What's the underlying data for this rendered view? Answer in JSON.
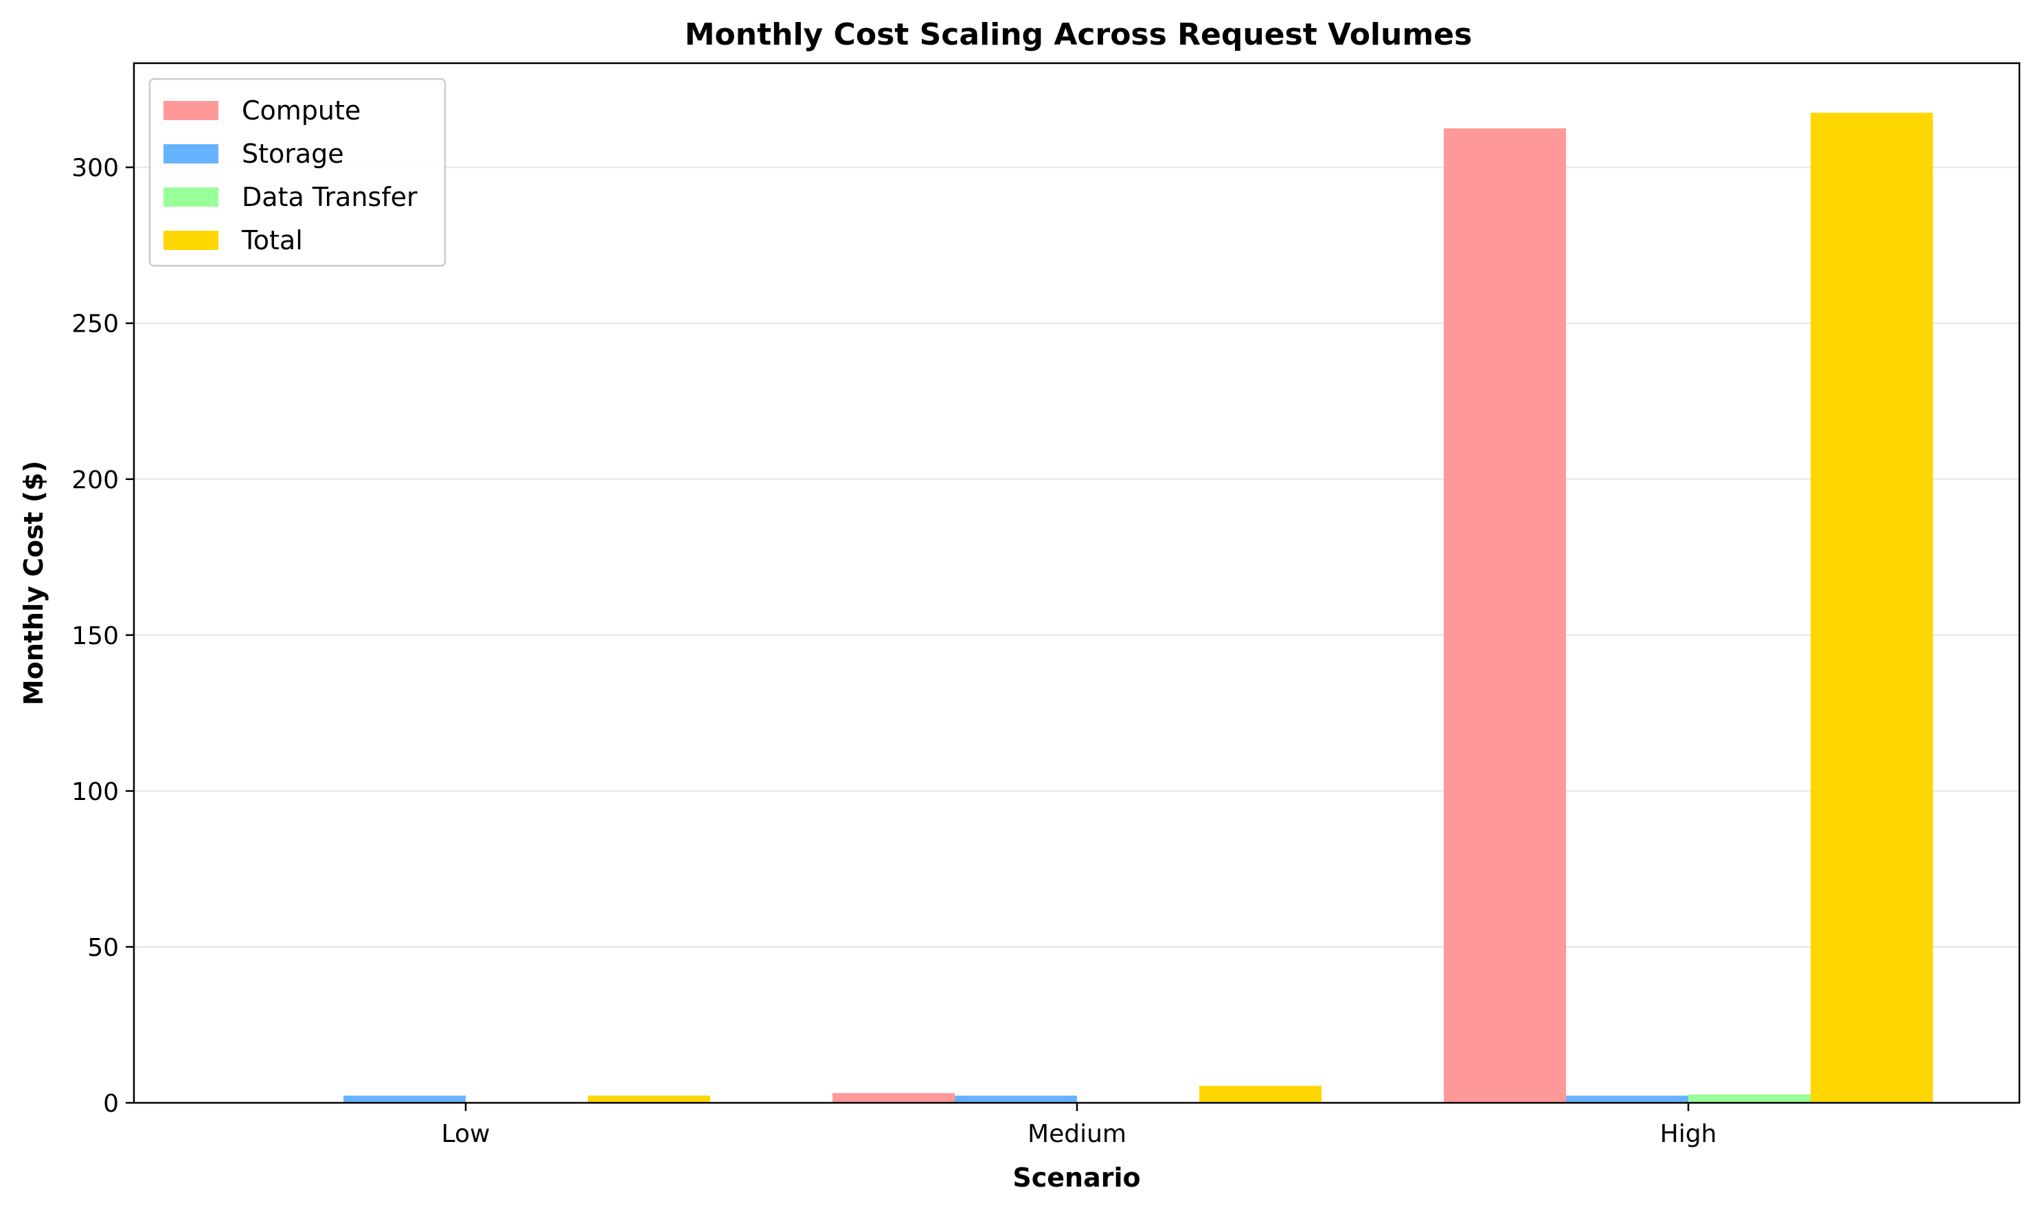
{
  "chart_data": {
    "type": "bar",
    "title": "Monthly Cost Scaling Across Request Volumes",
    "xlabel": "Scenario",
    "ylabel": "Monthly Cost ($)",
    "categories": [
      "Low",
      "Medium",
      "High"
    ],
    "series": [
      {
        "name": "Compute",
        "color": "#ff9999",
        "values": [
          0.03,
          3.13,
          312.5
        ]
      },
      {
        "name": "Storage",
        "color": "#66b3ff",
        "values": [
          2.3,
          2.3,
          2.3
        ]
      },
      {
        "name": "Data Transfer",
        "color": "#99ff99",
        "values": [
          0.0,
          0.0,
          2.7
        ]
      },
      {
        "name": "Total",
        "color": "#ffd700",
        "values": [
          2.33,
          5.43,
          317.5
        ]
      }
    ],
    "ylim": [
      0,
      333.4
    ],
    "yticks": [
      0,
      50,
      100,
      150,
      200,
      250,
      300
    ],
    "grid": "y",
    "legend_position": "top-left"
  }
}
